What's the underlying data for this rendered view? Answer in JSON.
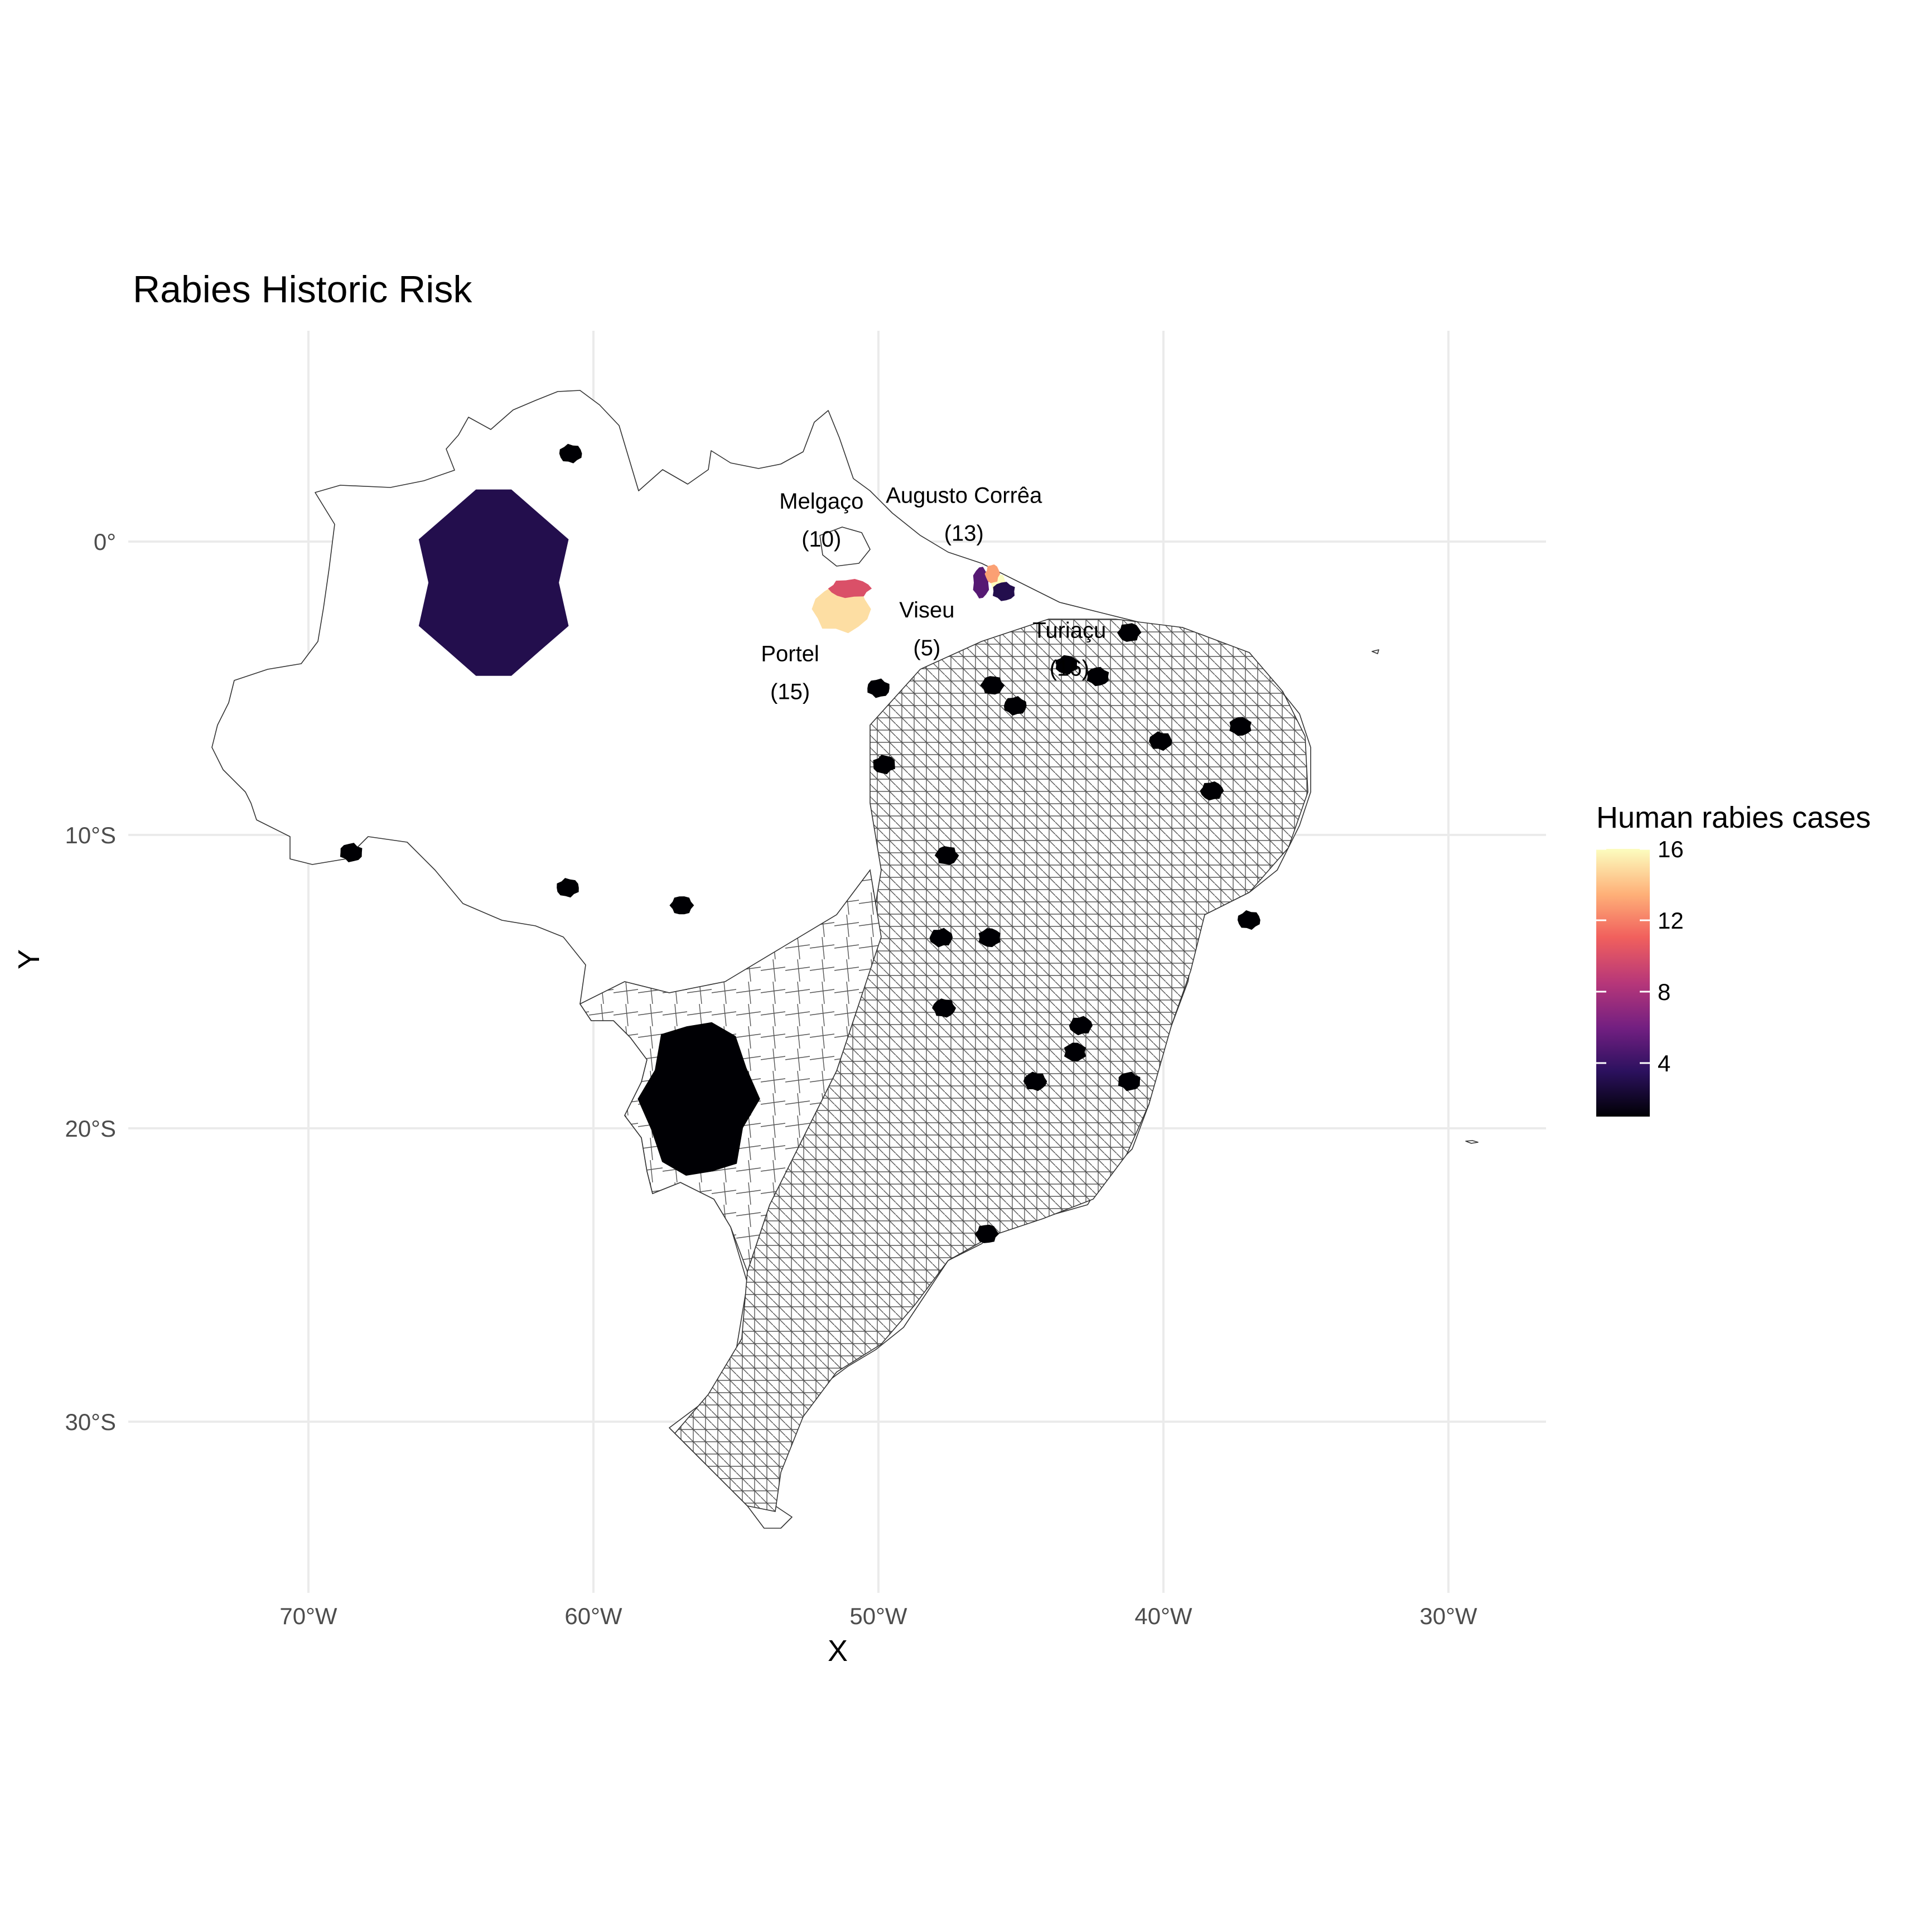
{
  "title": "Rabies Historic Risk",
  "xlabel": "X",
  "ylabel": "Y",
  "x_ticks": [
    {
      "value": -70,
      "label": "70°W"
    },
    {
      "value": -60,
      "label": "60°W"
    },
    {
      "value": -50,
      "label": "50°W"
    },
    {
      "value": -40,
      "label": "40°W"
    },
    {
      "value": -30,
      "label": "30°W"
    }
  ],
  "y_ticks": [
    {
      "value": 0,
      "label": "0°"
    },
    {
      "value": -10,
      "label": "10°S"
    },
    {
      "value": -20,
      "label": "20°S"
    },
    {
      "value": -30,
      "label": "30°S"
    }
  ],
  "legend": {
    "title": "Human rabies cases",
    "min": 1,
    "max": 16,
    "ticks": [
      {
        "value": 16,
        "label": "16"
      },
      {
        "value": 12,
        "label": "12"
      },
      {
        "value": 8,
        "label": "8"
      },
      {
        "value": 4,
        "label": "4"
      }
    ],
    "colors": [
      "#000004",
      "#2c115f",
      "#721f81",
      "#b73779",
      "#f1605d",
      "#feb078",
      "#fcfdbf"
    ]
  },
  "annotations": [
    {
      "name": "Melgaço",
      "count": "(10)",
      "lon": -52.0,
      "lat": 0.7
    },
    {
      "name": "Augusto Corrêa",
      "count": "(13)",
      "lon": -47.0,
      "lat": 0.9
    },
    {
      "name": "Viseu",
      "count": "(5)",
      "lon": -48.3,
      "lat": -3.0
    },
    {
      "name": "Portel",
      "count": "(15)",
      "lon": -53.1,
      "lat": -4.5
    },
    {
      "name": "Turiaçu",
      "count": "(16)",
      "lon": -43.3,
      "lat": -3.7
    }
  ],
  "highlighted_areas": [
    {
      "lon": -63.5,
      "lat": -1.4,
      "cases": 3
    },
    {
      "lon": -51.3,
      "lat": -2.3,
      "cases": 15
    },
    {
      "lon": -51.0,
      "lat": -1.6,
      "cases": 10
    },
    {
      "lon": -46.4,
      "lat": -1.4,
      "cases": 5
    },
    {
      "lon": -45.8,
      "lat": -1.4,
      "cases": 16
    },
    {
      "lon": -46.0,
      "lat": -1.1,
      "cases": 13
    },
    {
      "lon": -45.6,
      "lat": -1.7,
      "cases": 3
    },
    {
      "lon": -60.8,
      "lat": 3.0,
      "cases": 1
    },
    {
      "lon": -56.3,
      "lat": -19.0,
      "cases": 1
    },
    {
      "lon": -68.5,
      "lat": -10.6,
      "cases": 1
    },
    {
      "lon": -60.9,
      "lat": -11.8,
      "cases": 1
    },
    {
      "lon": -56.9,
      "lat": -12.4,
      "cases": 1
    },
    {
      "lon": -50.0,
      "lat": -5.0,
      "cases": 1
    },
    {
      "lon": -49.8,
      "lat": -7.6,
      "cases": 1
    },
    {
      "lon": -46.0,
      "lat": -4.9,
      "cases": 1
    },
    {
      "lon": -45.2,
      "lat": -5.6,
      "cases": 1
    },
    {
      "lon": -43.4,
      "lat": -4.2,
      "cases": 1
    },
    {
      "lon": -47.6,
      "lat": -10.7,
      "cases": 1
    },
    {
      "lon": -47.8,
      "lat": -13.5,
      "cases": 1
    },
    {
      "lon": -46.1,
      "lat": -13.5,
      "cases": 1
    },
    {
      "lon": -47.7,
      "lat": -15.9,
      "cases": 1
    },
    {
      "lon": -42.9,
      "lat": -16.5,
      "cases": 1
    },
    {
      "lon": -43.1,
      "lat": -17.4,
      "cases": 1
    },
    {
      "lon": -44.5,
      "lat": -18.4,
      "cases": 1
    },
    {
      "lon": -38.3,
      "lat": -8.5,
      "cases": 1
    },
    {
      "lon": -37.3,
      "lat": -6.3,
      "cases": 1
    },
    {
      "lon": -40.1,
      "lat": -6.8,
      "cases": 1
    },
    {
      "lon": -41.2,
      "lat": -3.1,
      "cases": 1
    },
    {
      "lon": -42.3,
      "lat": -4.6,
      "cases": 1
    },
    {
      "lon": -37.0,
      "lat": -12.9,
      "cases": 1
    },
    {
      "lon": -46.2,
      "lat": -23.6,
      "cases": 1
    },
    {
      "lon": -41.2,
      "lat": -18.4,
      "cases": 1
    }
  ]
}
